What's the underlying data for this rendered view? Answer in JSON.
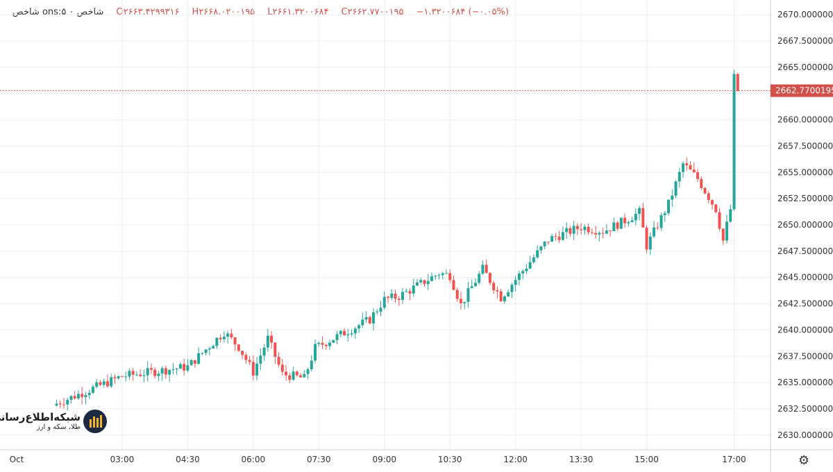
{
  "header": {
    "title": "شاخص ons:شاخص ۰ ۵",
    "open": "O۲۶۶۳.۴۲۹۹۳۱۶",
    "high": "H۲۶۶۸.۰۲۰۰۱۹۵",
    "low": "L۲۶۶۱.۳۲۰۰۶۸۴",
    "close": "C۲۶۶۲.۷۷۰۰۱۹۵",
    "change": "−۱.۳۲۰۰۶۸۴ (−۰.۰۵%)"
  },
  "logo": {
    "line1": "شبکه‌اطلاع‌رسانی",
    "line2": "طلا، سکه و ارز"
  },
  "icons": {
    "settings": "gear-icon"
  },
  "colors": {
    "up": "#26a69a",
    "down": "#ef5350",
    "grid": "#e9edf2",
    "price_line": "#d2504a"
  },
  "chart_data": {
    "type": "candlestick",
    "interval_minutes": 5,
    "y_ticks": [
      "2630.0000000",
      "2632.5000000",
      "2635.0000000",
      "2637.5000000",
      "2640.0000000",
      "2642.5000000",
      "2645.0000000",
      "2647.5000000",
      "2650.0000000",
      "2652.5000000",
      "2655.0000000",
      "2657.5000000",
      "2660.0000000",
      "2662.5000000",
      "2665.0000000",
      "2667.5000000",
      "2670.0000000"
    ],
    "x_ticks": [
      "Oct",
      "03:00",
      "04:30",
      "06:00",
      "07:30",
      "09:00",
      "10:30",
      "12:00",
      "13:30",
      "15:00",
      "17:00"
    ],
    "ylim": [
      2628.6,
      2671.4
    ],
    "last_price": 2662.7700195,
    "last_price_label": "2662.7700195",
    "grid": true,
    "keypoints": [
      {
        "t": "01:30",
        "close": 2633.0
      },
      {
        "t": "03:00",
        "close": 2635.6
      },
      {
        "t": "04:30",
        "close": 2636.5
      },
      {
        "t": "05:20",
        "close": 2639.8
      },
      {
        "t": "05:40",
        "close": 2638.4
      },
      {
        "t": "06:00",
        "close": 2636.0
      },
      {
        "t": "06:20",
        "close": 2639.2
      },
      {
        "t": "06:40",
        "close": 2635.8
      },
      {
        "t": "07:10",
        "close": 2635.4
      },
      {
        "t": "07:25",
        "close": 2638.3
      },
      {
        "t": "08:40",
        "close": 2641.0
      },
      {
        "t": "09:00",
        "close": 2642.9
      },
      {
        "t": "09:20",
        "close": 2643.2
      },
      {
        "t": "10:15",
        "close": 2645.4
      },
      {
        "t": "10:30",
        "close": 2645.2
      },
      {
        "t": "10:45",
        "close": 2642.4
      },
      {
        "t": "11:15",
        "close": 2645.8
      },
      {
        "t": "11:40",
        "close": 2643.1
      },
      {
        "t": "12:00",
        "close": 2644.8
      },
      {
        "t": "12:45",
        "close": 2648.6
      },
      {
        "t": "13:30",
        "close": 2649.8
      },
      {
        "t": "14:00",
        "close": 2649.4
      },
      {
        "t": "14:30",
        "close": 2650.4
      },
      {
        "t": "14:50",
        "close": 2651.2
      },
      {
        "t": "15:00",
        "close": 2648.0
      },
      {
        "t": "15:30",
        "close": 2652.0
      },
      {
        "t": "15:50",
        "close": 2655.8
      },
      {
        "t": "16:10",
        "close": 2654.4
      },
      {
        "t": "16:35",
        "close": 2651.5
      },
      {
        "t": "16:45",
        "close": 2648.5
      },
      {
        "t": "16:55",
        "close": 2651.5
      },
      {
        "t": "17:00",
        "close": 2664.0
      },
      {
        "t": "17:05",
        "close": 2662.77
      }
    ]
  }
}
